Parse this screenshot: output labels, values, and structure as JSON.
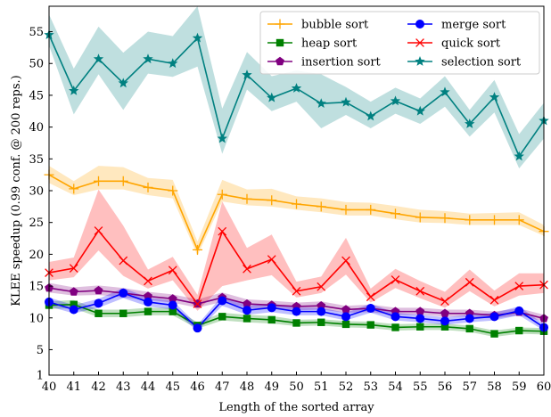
{
  "chart_data": {
    "type": "line",
    "title": "",
    "xlabel": "Length of the sorted array",
    "ylabel": "KLEE speedup (0.99 conf. @ 200 reps.)",
    "xlim": [
      40,
      60
    ],
    "ylim": [
      1,
      59
    ],
    "x": [
      40,
      41,
      42,
      43,
      44,
      45,
      46,
      47,
      48,
      49,
      50,
      51,
      52,
      53,
      54,
      55,
      56,
      57,
      58,
      59,
      60
    ],
    "x_ticks": [
      "40",
      "41",
      "42",
      "43",
      "44",
      "45",
      "46",
      "47",
      "48",
      "49",
      "50",
      "51",
      "52",
      "53",
      "54",
      "55",
      "56",
      "57",
      "58",
      "59",
      "60"
    ],
    "y_ticks": [
      "1",
      "5",
      "10",
      "15",
      "20",
      "25",
      "30",
      "35",
      "40",
      "45",
      "50",
      "55"
    ],
    "grid": false,
    "legend": {
      "placement": "top-right",
      "columns": 2
    },
    "series": [
      {
        "name": "bubble sort",
        "color": "#ffa500",
        "marker": "plus",
        "values": [
          32.5,
          30.3,
          31.5,
          31.5,
          30.5,
          30.0,
          20.7,
          29.4,
          28.7,
          28.5,
          27.9,
          27.5,
          27.0,
          27.0,
          26.4,
          25.8,
          25.7,
          25.4,
          25.4,
          25.4,
          23.6
        ],
        "lower": [
          31.2,
          29.3,
          30.2,
          30.2,
          29.3,
          28.8,
          19.8,
          28.3,
          27.7,
          27.5,
          27.0,
          26.6,
          26.1,
          26.1,
          25.5,
          25.0,
          24.9,
          24.6,
          24.6,
          24.6,
          22.9
        ],
        "upper": [
          33.9,
          31.5,
          33.9,
          33.7,
          32.0,
          31.7,
          22.0,
          31.7,
          30.2,
          30.3,
          29.1,
          28.8,
          28.2,
          28.1,
          27.6,
          27.0,
          26.8,
          26.4,
          26.5,
          26.6,
          24.6
        ]
      },
      {
        "name": "heap sort",
        "color": "#008000",
        "marker": "square",
        "values": [
          12.0,
          12.1,
          10.7,
          10.7,
          11.0,
          11.0,
          8.8,
          10.2,
          9.9,
          9.7,
          9.2,
          9.3,
          9.0,
          8.9,
          8.5,
          8.6,
          8.6,
          8.3,
          7.5,
          8.0,
          7.9
        ],
        "lower": [
          11.4,
          11.5,
          10.1,
          10.1,
          10.4,
          10.4,
          8.3,
          9.6,
          9.3,
          9.1,
          8.7,
          8.8,
          8.5,
          8.4,
          8.0,
          8.1,
          8.1,
          7.8,
          7.0,
          7.5,
          7.4
        ],
        "upper": [
          12.6,
          12.8,
          11.3,
          11.3,
          11.6,
          11.6,
          9.3,
          10.8,
          10.5,
          10.3,
          9.7,
          9.8,
          9.5,
          9.4,
          9.0,
          9.1,
          9.1,
          8.8,
          8.0,
          8.5,
          8.4
        ]
      },
      {
        "name": "insertion sort",
        "color": "#800080",
        "marker": "pentagon",
        "values": [
          14.7,
          14.1,
          14.3,
          13.9,
          13.4,
          13.0,
          12.2,
          13.2,
          12.2,
          12.0,
          11.8,
          11.9,
          11.3,
          11.5,
          11.0,
          11.0,
          10.7,
          10.7,
          10.4,
          10.9,
          9.9
        ],
        "lower": [
          14.0,
          13.5,
          13.6,
          13.2,
          12.8,
          12.4,
          11.6,
          12.5,
          11.6,
          11.4,
          11.2,
          11.3,
          10.8,
          10.9,
          10.5,
          10.5,
          10.2,
          10.2,
          9.9,
          10.4,
          9.4
        ],
        "upper": [
          15.5,
          14.8,
          15.1,
          14.7,
          14.1,
          13.7,
          12.9,
          14.0,
          12.9,
          12.7,
          12.4,
          12.6,
          11.9,
          12.1,
          11.6,
          11.6,
          11.3,
          11.3,
          11.0,
          11.5,
          10.5
        ]
      },
      {
        "name": "merge sort",
        "color": "#0000ff",
        "marker": "circle",
        "values": [
          12.5,
          11.3,
          12.3,
          13.9,
          12.5,
          12.0,
          8.4,
          12.7,
          11.2,
          11.6,
          11.0,
          11.0,
          10.2,
          11.5,
          10.2,
          9.9,
          9.5,
          9.9,
          10.2,
          11.1,
          8.5
        ],
        "lower": [
          11.8,
          10.7,
          11.6,
          13.1,
          11.8,
          11.3,
          7.9,
          11.9,
          10.5,
          10.9,
          10.4,
          10.4,
          9.6,
          10.8,
          9.6,
          9.3,
          8.9,
          9.3,
          9.6,
          10.4,
          8.0
        ],
        "upper": [
          13.2,
          12.0,
          13.0,
          14.7,
          13.2,
          12.7,
          8.9,
          13.5,
          11.9,
          12.3,
          11.6,
          11.6,
          10.8,
          12.2,
          10.8,
          10.5,
          10.1,
          10.5,
          10.8,
          11.8,
          9.0
        ]
      },
      {
        "name": "quick sort",
        "color": "#ff0000",
        "marker": "x",
        "values": [
          17.1,
          17.8,
          23.7,
          19.0,
          15.8,
          17.5,
          12.2,
          23.6,
          17.7,
          19.2,
          14.2,
          14.9,
          19.0,
          13.3,
          16.0,
          14.2,
          12.6,
          15.6,
          12.8,
          15.0,
          15.2
        ],
        "lower": [
          15.9,
          16.4,
          20.6,
          16.6,
          14.6,
          15.9,
          11.1,
          15.0,
          15.9,
          16.7,
          13.2,
          13.9,
          16.8,
          12.4,
          14.7,
          13.1,
          11.6,
          14.2,
          11.8,
          13.5,
          13.9
        ],
        "upper": [
          18.8,
          19.5,
          30.2,
          24.5,
          17.6,
          19.6,
          13.6,
          28.3,
          21.0,
          23.1,
          15.7,
          16.5,
          22.6,
          14.6,
          17.7,
          15.8,
          14.1,
          17.6,
          14.3,
          17.0,
          17.0
        ]
      },
      {
        "name": "selection sort",
        "color": "#008080",
        "marker": "star",
        "values": [
          54.5,
          45.7,
          50.7,
          46.9,
          50.7,
          50.0,
          54.0,
          38.2,
          48.2,
          44.6,
          46.1,
          43.7,
          43.9,
          41.7,
          44.1,
          42.5,
          45.5,
          40.5,
          44.7,
          35.4,
          41.0
        ],
        "lower": [
          52.8,
          42.0,
          48.3,
          42.7,
          48.4,
          47.9,
          49.5,
          35.8,
          45.9,
          42.5,
          44.0,
          39.8,
          41.9,
          39.8,
          42.1,
          40.5,
          43.2,
          38.5,
          42.3,
          33.5,
          38.2
        ],
        "upper": [
          57.7,
          49.2,
          55.8,
          51.7,
          55.0,
          54.3,
          59.0,
          42.9,
          51.8,
          48.0,
          48.9,
          48.3,
          46.3,
          44.0,
          46.2,
          44.5,
          48.0,
          42.7,
          47.4,
          38.9,
          43.8
        ]
      }
    ]
  }
}
